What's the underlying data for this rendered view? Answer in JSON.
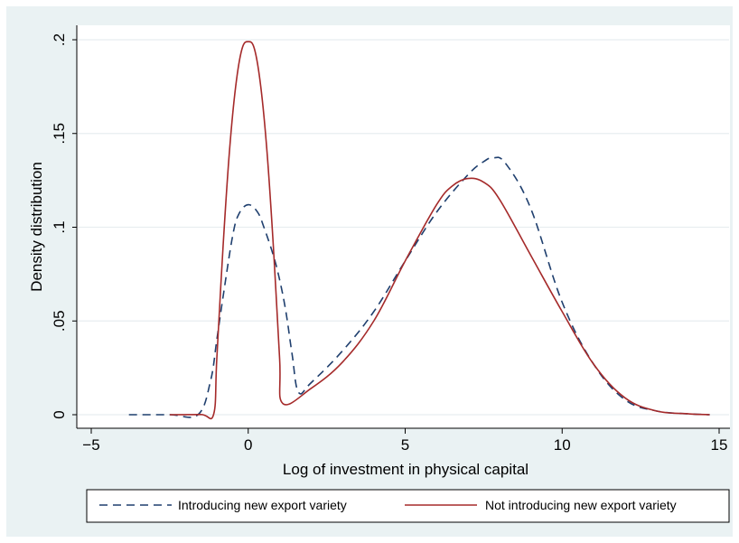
{
  "chart_data": {
    "type": "line",
    "title": "",
    "xlabel": "Log of investment in physical capital",
    "ylabel": "Density distribution",
    "xlim": [
      -5,
      15
    ],
    "ylim": [
      0,
      0.2
    ],
    "xticks": [
      -5,
      0,
      5,
      10,
      15
    ],
    "xtick_labels": [
      "−5",
      "0",
      "5",
      "10",
      "15"
    ],
    "yticks": [
      0,
      0.05,
      0.1,
      0.15,
      0.2
    ],
    "ytick_labels": [
      "0",
      ".05",
      ".1",
      ".15",
      ".2"
    ],
    "grid": true,
    "legend_position": "bottom",
    "series": [
      {
        "name": "Introducing new export variety",
        "color": "#1f3f6e",
        "style": "dashed",
        "x": [
          -3.8,
          -2.5,
          -1.6,
          -1.2,
          -1.0,
          -0.8,
          -0.5,
          -0.3,
          0.0,
          0.3,
          0.5,
          0.8,
          1.0,
          1.2,
          1.4,
          1.6,
          2.0,
          3.0,
          4.0,
          5.0,
          6.0,
          7.0,
          7.5,
          7.8,
          8.2,
          9.0,
          10.0,
          11.0,
          12.0,
          13.0,
          14.0,
          14.7
        ],
        "y": [
          0.0,
          0.0,
          0.0,
          0.018,
          0.04,
          0.063,
          0.095,
          0.107,
          0.112,
          0.108,
          0.1,
          0.085,
          0.072,
          0.055,
          0.032,
          0.012,
          0.017,
          0.034,
          0.055,
          0.082,
          0.108,
          0.128,
          0.135,
          0.137,
          0.134,
          0.11,
          0.06,
          0.027,
          0.008,
          0.002,
          0.0005,
          0.0
        ]
      },
      {
        "name": "Not introducing new export variety",
        "color": "#a52a2a",
        "style": "solid",
        "x": [
          -2.5,
          -1.5,
          -1.1,
          -1.0,
          -0.8,
          -0.6,
          -0.4,
          -0.2,
          0.0,
          0.2,
          0.4,
          0.6,
          0.8,
          1.0,
          1.1,
          2.0,
          3.0,
          4.0,
          5.0,
          6.0,
          6.5,
          7.0,
          7.5,
          8.0,
          9.0,
          10.0,
          11.0,
          12.0,
          13.0,
          14.0,
          14.7
        ],
        "y": [
          0.0,
          0.0001,
          0.0003,
          0.03,
          0.09,
          0.14,
          0.175,
          0.195,
          0.199,
          0.195,
          0.175,
          0.14,
          0.09,
          0.03,
          0.006,
          0.014,
          0.028,
          0.05,
          0.082,
          0.112,
          0.122,
          0.126,
          0.124,
          0.115,
          0.085,
          0.055,
          0.027,
          0.009,
          0.002,
          0.0005,
          0.0
        ]
      }
    ]
  }
}
